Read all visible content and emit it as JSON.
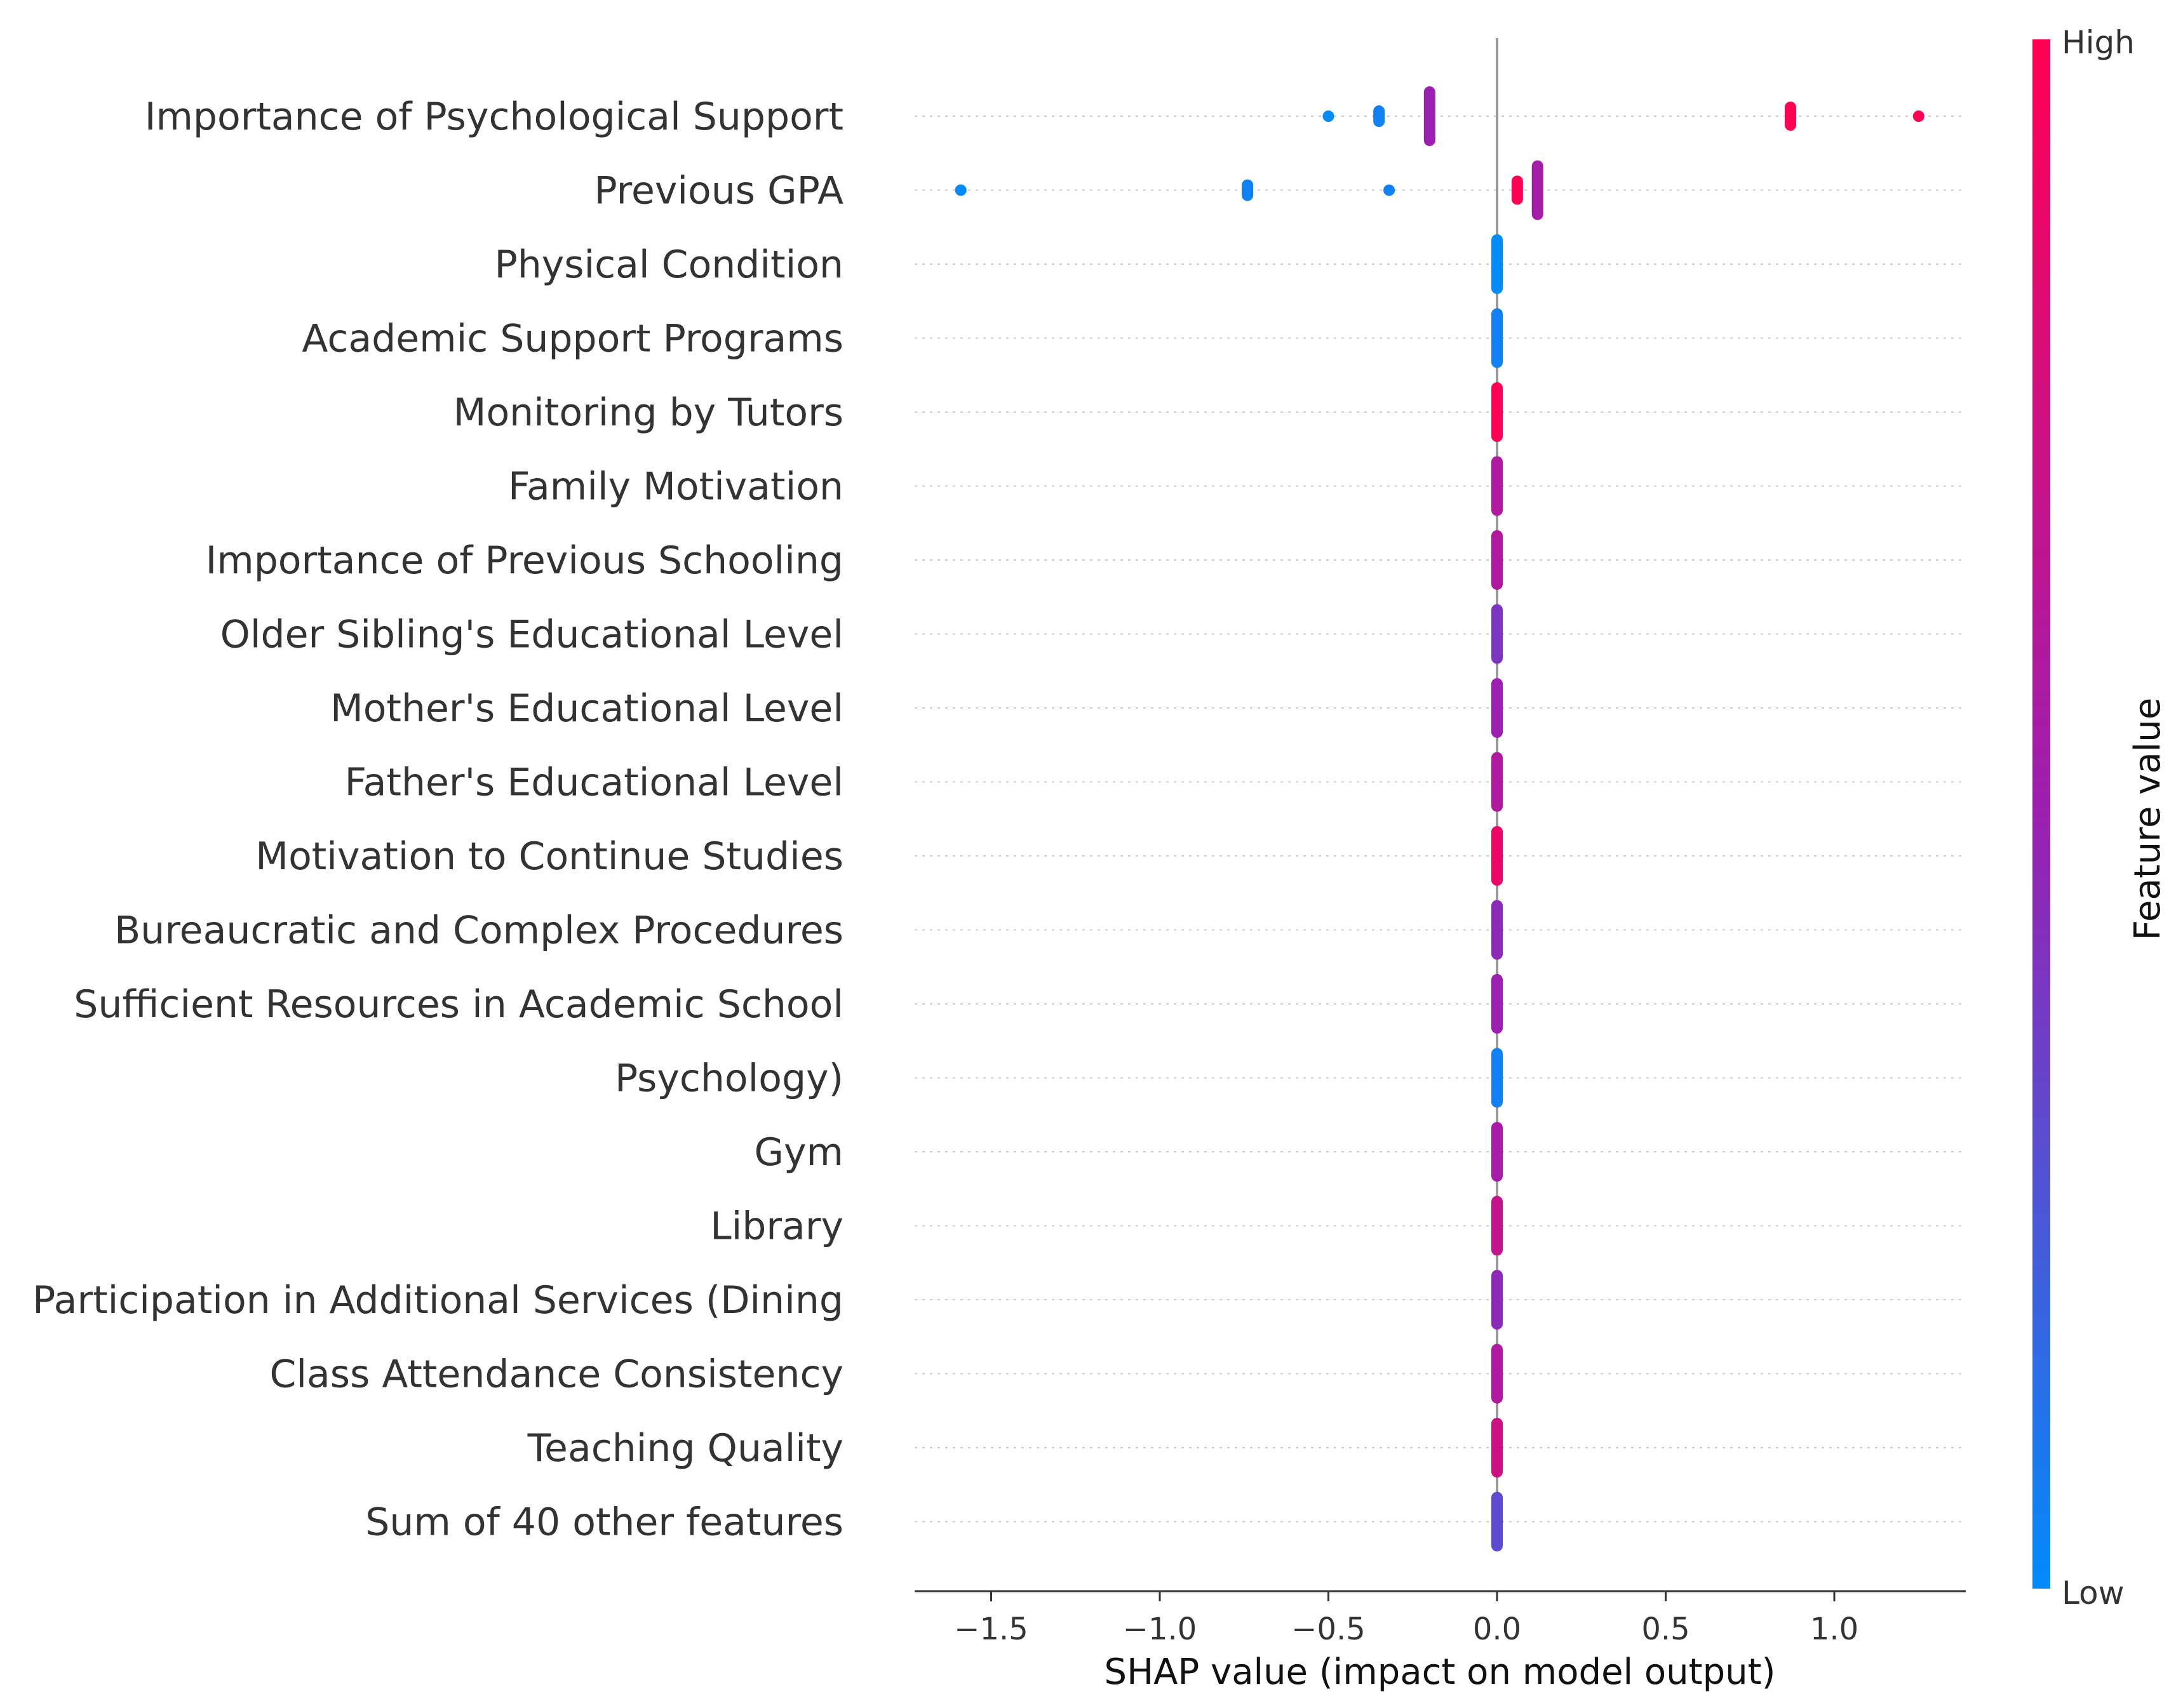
{
  "chart_data": {
    "type": "scatter",
    "subtype": "shap-beeswarm-summary",
    "xlabel": "SHAP value (impact on model output)",
    "xlim": [
      -1.75,
      1.4
    ],
    "xticks": [
      -1.5,
      -1.0,
      -0.5,
      0.0,
      0.5,
      1.0
    ],
    "xtick_labels": [
      "−1.5",
      "−1.0",
      "−0.5",
      "0.0",
      "0.5",
      "1.0"
    ],
    "colorbar": {
      "title": "Feature value",
      "high_label": "High",
      "low_label": "Low",
      "low_color": "#008bfb",
      "high_color": "#ff0052"
    },
    "features": [
      {
        "name": "Importance of Psychological Support",
        "points": [
          {
            "x": -0.5,
            "v": 0.0,
            "n": 1
          },
          {
            "x": -0.35,
            "v": 0.05,
            "n": 3
          },
          {
            "x": -0.2,
            "v": 0.5,
            "n": 8
          },
          {
            "x": 0.87,
            "v": 1.0,
            "n": 4
          },
          {
            "x": 1.25,
            "v": 1.0,
            "n": 1
          }
        ]
      },
      {
        "name": "Previous GPA",
        "points": [
          {
            "x": -1.59,
            "v": 0.0,
            "n": 1
          },
          {
            "x": -0.74,
            "v": 0.05,
            "n": 3
          },
          {
            "x": -0.32,
            "v": 0.05,
            "n": 1
          },
          {
            "x": 0.06,
            "v": 1.0,
            "n": 4
          },
          {
            "x": 0.12,
            "v": 0.55,
            "n": 8
          }
        ]
      },
      {
        "name": "Physical Condition",
        "points": [
          {
            "x": 0.0,
            "v": 0.0,
            "n": 8
          }
        ]
      },
      {
        "name": "Academic Support Programs",
        "points": [
          {
            "x": 0.0,
            "v": 0.05,
            "n": 8
          }
        ]
      },
      {
        "name": "Monitoring by Tutors",
        "points": [
          {
            "x": 0.0,
            "v": 1.0,
            "n": 8
          }
        ]
      },
      {
        "name": "Family Motivation",
        "points": [
          {
            "x": 0.0,
            "v": 0.6,
            "n": 8
          }
        ]
      },
      {
        "name": "Importance of Previous Schooling",
        "points": [
          {
            "x": 0.0,
            "v": 0.6,
            "n": 8
          }
        ]
      },
      {
        "name": "Older Sibling's Educational Level",
        "points": [
          {
            "x": 0.0,
            "v": 0.4,
            "n": 8
          }
        ]
      },
      {
        "name": "Mother's Educational Level",
        "points": [
          {
            "x": 0.0,
            "v": 0.5,
            "n": 8
          }
        ]
      },
      {
        "name": "Father's Educational Level",
        "points": [
          {
            "x": 0.0,
            "v": 0.6,
            "n": 8
          }
        ]
      },
      {
        "name": "Motivation to Continue Studies",
        "points": [
          {
            "x": 0.0,
            "v": 0.9,
            "n": 8
          }
        ]
      },
      {
        "name": "Bureaucratic and Complex Procedures",
        "points": [
          {
            "x": 0.0,
            "v": 0.45,
            "n": 8
          }
        ]
      },
      {
        "name": "Sufficient Resources in Academic School",
        "points": [
          {
            "x": 0.0,
            "v": 0.5,
            "n": 8
          }
        ]
      },
      {
        "name": "Psychology)",
        "points": [
          {
            "x": 0.0,
            "v": 0.05,
            "n": 8
          }
        ]
      },
      {
        "name": "Gym",
        "points": [
          {
            "x": 0.0,
            "v": 0.55,
            "n": 8
          }
        ]
      },
      {
        "name": "Library",
        "points": [
          {
            "x": 0.0,
            "v": 0.7,
            "n": 8
          }
        ]
      },
      {
        "name": "Participation in Additional Services (Dining",
        "points": [
          {
            "x": 0.0,
            "v": 0.45,
            "n": 8
          }
        ]
      },
      {
        "name": "Class Attendance Consistency",
        "points": [
          {
            "x": 0.0,
            "v": 0.6,
            "n": 8
          }
        ]
      },
      {
        "name": "Teaching Quality",
        "points": [
          {
            "x": 0.0,
            "v": 0.75,
            "n": 8
          }
        ]
      },
      {
        "name": "Sum of 40 other features",
        "points": [
          {
            "x": 0.0,
            "v": 0.3,
            "n": 8
          }
        ]
      }
    ]
  }
}
